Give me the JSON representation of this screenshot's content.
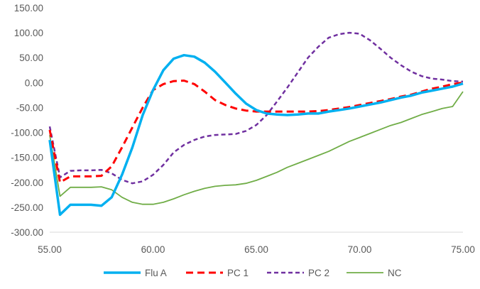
{
  "chart_data": {
    "type": "line",
    "title": "",
    "xlabel": "",
    "ylabel": "",
    "xlim": [
      55.0,
      75.0
    ],
    "ylim": [
      -300.0,
      150.0
    ],
    "x_ticks": [
      55,
      60,
      65,
      70,
      75
    ],
    "y_ticks": [
      150,
      100,
      50,
      0,
      -50,
      -100,
      -150,
      -200,
      -250,
      -300
    ],
    "x_tick_labels": [
      "55.00",
      "60.00",
      "65.00",
      "70.00",
      "75.00"
    ],
    "y_tick_labels": [
      "150.00",
      "100.00",
      "50.00",
      "0.00",
      "-50.00",
      "-100.00",
      "-150.00",
      "-200.00",
      "-250.00",
      "-300.00"
    ],
    "grid": false,
    "legend_position": "bottom",
    "series": [
      {
        "name": "Flu A",
        "color": "#00B0F0",
        "dash": "solid",
        "points": [
          [
            55.0,
            -115
          ],
          [
            55.5,
            -265
          ],
          [
            56.0,
            -245
          ],
          [
            56.5,
            -245
          ],
          [
            57.0,
            -245
          ],
          [
            57.5,
            -247
          ],
          [
            58.0,
            -230
          ],
          [
            58.5,
            -185
          ],
          [
            59.0,
            -130
          ],
          [
            59.5,
            -65
          ],
          [
            60.0,
            -15
          ],
          [
            60.5,
            25
          ],
          [
            61.0,
            48
          ],
          [
            61.5,
            55
          ],
          [
            62.0,
            52
          ],
          [
            62.5,
            40
          ],
          [
            63.0,
            22
          ],
          [
            63.5,
            0
          ],
          [
            64.0,
            -22
          ],
          [
            64.5,
            -42
          ],
          [
            65.0,
            -55
          ],
          [
            65.5,
            -62
          ],
          [
            66.0,
            -64
          ],
          [
            66.5,
            -65
          ],
          [
            67.0,
            -64
          ],
          [
            67.5,
            -62
          ],
          [
            68.0,
            -62
          ],
          [
            68.5,
            -58
          ],
          [
            69.0,
            -55
          ],
          [
            69.5,
            -52
          ],
          [
            70.0,
            -48
          ],
          [
            70.5,
            -44
          ],
          [
            71.0,
            -40
          ],
          [
            71.5,
            -35
          ],
          [
            72.0,
            -30
          ],
          [
            72.5,
            -26
          ],
          [
            73.0,
            -20
          ],
          [
            73.5,
            -16
          ],
          [
            74.0,
            -12
          ],
          [
            74.5,
            -8
          ],
          [
            75.0,
            -2
          ]
        ]
      },
      {
        "name": "PC 1",
        "color": "#FF0000",
        "dash": "dashed",
        "points": [
          [
            55.0,
            -95
          ],
          [
            55.5,
            -200
          ],
          [
            56.0,
            -188
          ],
          [
            56.5,
            -188
          ],
          [
            57.0,
            -188
          ],
          [
            57.5,
            -187
          ],
          [
            58.0,
            -168
          ],
          [
            58.5,
            -130
          ],
          [
            59.0,
            -90
          ],
          [
            59.5,
            -50
          ],
          [
            60.0,
            -15
          ],
          [
            60.5,
            -3
          ],
          [
            61.0,
            3
          ],
          [
            61.5,
            4
          ],
          [
            62.0,
            -3
          ],
          [
            62.5,
            -18
          ],
          [
            63.0,
            -35
          ],
          [
            63.5,
            -45
          ],
          [
            64.0,
            -52
          ],
          [
            64.5,
            -56
          ],
          [
            65.0,
            -58
          ],
          [
            65.5,
            -58
          ],
          [
            66.0,
            -58
          ],
          [
            66.5,
            -58
          ],
          [
            67.0,
            -58
          ],
          [
            67.5,
            -58
          ],
          [
            68.0,
            -57
          ],
          [
            68.5,
            -55
          ],
          [
            69.0,
            -52
          ],
          [
            69.5,
            -49
          ],
          [
            70.0,
            -45
          ],
          [
            70.5,
            -41
          ],
          [
            71.0,
            -37
          ],
          [
            71.5,
            -33
          ],
          [
            72.0,
            -28
          ],
          [
            72.5,
            -24
          ],
          [
            73.0,
            -18
          ],
          [
            73.5,
            -12
          ],
          [
            74.0,
            -8
          ],
          [
            74.5,
            -3
          ],
          [
            75.0,
            0
          ]
        ]
      },
      {
        "name": "PC 2",
        "color": "#7030A0",
        "dash": "dashed",
        "points": [
          [
            55.0,
            -88
          ],
          [
            55.5,
            -190
          ],
          [
            56.0,
            -177
          ],
          [
            56.5,
            -176
          ],
          [
            57.0,
            -176
          ],
          [
            57.5,
            -175
          ],
          [
            58.0,
            -182
          ],
          [
            58.5,
            -195
          ],
          [
            59.0,
            -202
          ],
          [
            59.5,
            -198
          ],
          [
            60.0,
            -185
          ],
          [
            60.5,
            -165
          ],
          [
            61.0,
            -140
          ],
          [
            61.5,
            -125
          ],
          [
            62.0,
            -115
          ],
          [
            62.5,
            -108
          ],
          [
            63.0,
            -105
          ],
          [
            63.5,
            -104
          ],
          [
            64.0,
            -103
          ],
          [
            64.5,
            -97
          ],
          [
            65.0,
            -85
          ],
          [
            65.5,
            -65
          ],
          [
            66.0,
            -38
          ],
          [
            66.5,
            -10
          ],
          [
            67.0,
            20
          ],
          [
            67.5,
            50
          ],
          [
            68.0,
            72
          ],
          [
            68.5,
            90
          ],
          [
            69.0,
            97
          ],
          [
            69.5,
            100
          ],
          [
            70.0,
            98
          ],
          [
            70.5,
            85
          ],
          [
            71.0,
            68
          ],
          [
            71.5,
            50
          ],
          [
            72.0,
            35
          ],
          [
            72.5,
            22
          ],
          [
            73.0,
            13
          ],
          [
            73.5,
            8
          ],
          [
            74.0,
            6
          ],
          [
            74.5,
            3
          ],
          [
            75.0,
            2
          ]
        ]
      },
      {
        "name": "NC",
        "color": "#70AD47",
        "dash": "solid",
        "points": [
          [
            55.0,
            -105
          ],
          [
            55.5,
            -228
          ],
          [
            56.0,
            -210
          ],
          [
            56.5,
            -210
          ],
          [
            57.0,
            -210
          ],
          [
            57.5,
            -209
          ],
          [
            58.0,
            -215
          ],
          [
            58.5,
            -230
          ],
          [
            59.0,
            -240
          ],
          [
            59.5,
            -244
          ],
          [
            60.0,
            -244
          ],
          [
            60.5,
            -240
          ],
          [
            61.0,
            -233
          ],
          [
            61.5,
            -225
          ],
          [
            62.0,
            -218
          ],
          [
            62.5,
            -212
          ],
          [
            63.0,
            -208
          ],
          [
            63.5,
            -206
          ],
          [
            64.0,
            -205
          ],
          [
            64.5,
            -202
          ],
          [
            65.0,
            -196
          ],
          [
            65.5,
            -188
          ],
          [
            66.0,
            -180
          ],
          [
            66.5,
            -170
          ],
          [
            67.0,
            -162
          ],
          [
            67.5,
            -154
          ],
          [
            68.0,
            -146
          ],
          [
            68.5,
            -138
          ],
          [
            69.0,
            -128
          ],
          [
            69.5,
            -118
          ],
          [
            70.0,
            -110
          ],
          [
            70.5,
            -102
          ],
          [
            71.0,
            -94
          ],
          [
            71.5,
            -86
          ],
          [
            72.0,
            -80
          ],
          [
            72.5,
            -72
          ],
          [
            73.0,
            -64
          ],
          [
            73.5,
            -58
          ],
          [
            74.0,
            -52
          ],
          [
            74.5,
            -48
          ],
          [
            75.0,
            -18
          ]
        ]
      }
    ]
  }
}
